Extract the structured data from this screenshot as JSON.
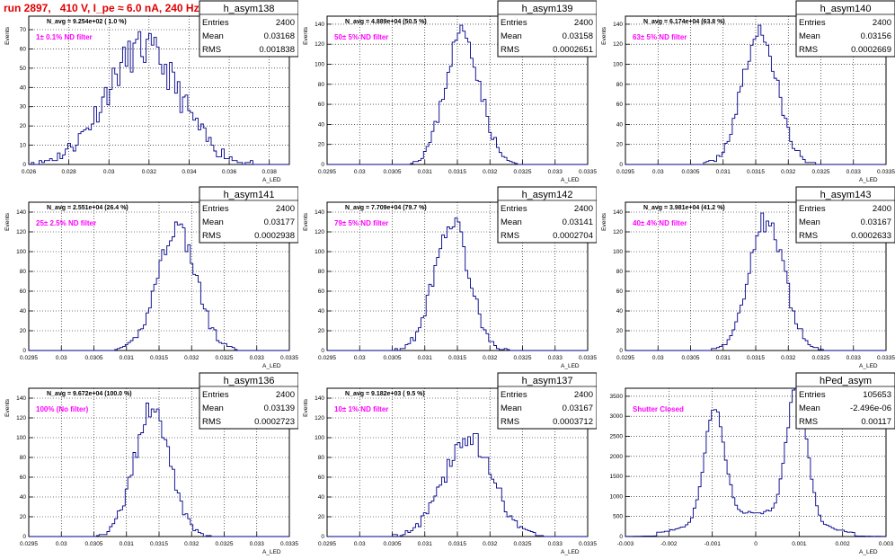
{
  "page_title": "run 2897,   410 V, I_pe ≈ 6.0 nA, 240 Hz",
  "chart_data": [
    {
      "type": "histogram",
      "hist_name": "h_asym138",
      "stats": {
        "entries": "2400",
        "mean": "0.03168",
        "rms": "0.001838"
      },
      "annotation": "N_avg = 9.254e+02 ( 1.0 %)",
      "label": "1± 0.1% ND filter",
      "ylabel": "Events",
      "xlabel": "A_LED",
      "xlim": [
        0.026,
        0.039
      ],
      "ylim": [
        0,
        77
      ],
      "xticks": [
        "0.026",
        "0.028",
        "0.03",
        "0.032",
        "0.034",
        "0.036",
        "0.038"
      ],
      "xtick_values": [
        0.026,
        0.028,
        0.03,
        0.032,
        0.034,
        0.036,
        0.038
      ],
      "yticks": [
        0,
        10,
        20,
        30,
        40,
        50,
        60,
        70
      ],
      "gen": {
        "kind": "gauss",
        "mu": 0.03168,
        "sigma": 0.001838,
        "peak": 60,
        "bins": 100,
        "noise": 10,
        "seed": 11
      }
    },
    {
      "type": "histogram",
      "hist_name": "h_asym139",
      "stats": {
        "entries": "2400",
        "mean": "0.03158",
        "rms": "0.0002651"
      },
      "annotation": "N_avg = 4.889e+04 (50.5 %)",
      "label": "50± 5% ND filter",
      "ylabel": "Events",
      "xlabel": "A_LED",
      "xlim": [
        0.0295,
        0.0335
      ],
      "ylim": [
        0,
        148
      ],
      "xticks": [
        "0.0295",
        "0.03",
        "0.0305",
        "0.031",
        "0.0315",
        "0.032",
        "0.0325",
        "0.033",
        "0.0335"
      ],
      "xtick_values": [
        0.0295,
        0.03,
        0.0305,
        0.031,
        0.0315,
        0.032,
        0.0325,
        0.033,
        0.0335
      ],
      "yticks": [
        0,
        20,
        40,
        60,
        80,
        100,
        120,
        140
      ],
      "gen": {
        "kind": "gauss",
        "mu": 0.03158,
        "sigma": 0.0002651,
        "peak": 132,
        "bins": 100,
        "noise": 12,
        "seed": 23
      }
    },
    {
      "type": "histogram",
      "hist_name": "h_asym140",
      "stats": {
        "entries": "2400",
        "mean": "0.03156",
        "rms": "0.0002669"
      },
      "annotation": "N_avg = 6.174e+04 (63.8 %)",
      "label": "63± 5% ND filter",
      "ylabel": "Events",
      "xlabel": "A_LED",
      "xlim": [
        0.0295,
        0.0335
      ],
      "ylim": [
        0,
        148
      ],
      "xticks": [
        "0.0295",
        "0.03",
        "0.0305",
        "0.031",
        "0.0315",
        "0.032",
        "0.0325",
        "0.033",
        "0.0335"
      ],
      "xtick_values": [
        0.0295,
        0.03,
        0.0305,
        0.031,
        0.0315,
        0.032,
        0.0325,
        0.033,
        0.0335
      ],
      "yticks": [
        0,
        20,
        40,
        60,
        80,
        100,
        120,
        140
      ],
      "gen": {
        "kind": "gauss",
        "mu": 0.03156,
        "sigma": 0.0002669,
        "peak": 132,
        "bins": 100,
        "noise": 12,
        "seed": 37
      }
    },
    {
      "type": "histogram",
      "hist_name": "h_asym141",
      "stats": {
        "entries": "2400",
        "mean": "0.03177",
        "rms": "0.0002938"
      },
      "annotation": "N_avg = 2.551e+04 (26.4 %)",
      "label": "25± 2.5% ND filter",
      "ylabel": "Events",
      "xlabel": "A_LED",
      "xlim": [
        0.0295,
        0.0335
      ],
      "ylim": [
        0,
        150
      ],
      "xticks": [
        "0.0295",
        "0.03",
        "0.0305",
        "0.031",
        "0.0315",
        "0.032",
        "0.0325",
        "0.033",
        "0.0335"
      ],
      "xtick_values": [
        0.0295,
        0.03,
        0.0305,
        0.031,
        0.0315,
        0.032,
        0.0325,
        0.033,
        0.0335
      ],
      "yticks": [
        0,
        20,
        40,
        60,
        80,
        100,
        120,
        140
      ],
      "gen": {
        "kind": "gauss",
        "mu": 0.03177,
        "sigma": 0.0002938,
        "peak": 125,
        "bins": 100,
        "noise": 12,
        "seed": 41
      }
    },
    {
      "type": "histogram",
      "hist_name": "h_asym142",
      "stats": {
        "entries": "2400",
        "mean": "0.03141",
        "rms": "0.0002704"
      },
      "annotation": "N_avg = 7.709e+04 (79.7 %)",
      "label": "79± 5% ND filter",
      "ylabel": "Events",
      "xlabel": "A_LED",
      "xlim": [
        0.0295,
        0.0335
      ],
      "ylim": [
        0,
        150
      ],
      "xticks": [
        "0.0295",
        "0.03",
        "0.0305",
        "0.031",
        "0.0315",
        "0.032",
        "0.0325",
        "0.033",
        "0.0335"
      ],
      "xtick_values": [
        0.0295,
        0.03,
        0.0305,
        0.031,
        0.0315,
        0.032,
        0.0325,
        0.033,
        0.0335
      ],
      "yticks": [
        0,
        20,
        40,
        60,
        80,
        100,
        120,
        140
      ],
      "gen": {
        "kind": "gauss",
        "mu": 0.03141,
        "sigma": 0.0002704,
        "peak": 130,
        "bins": 100,
        "noise": 12,
        "seed": 53
      }
    },
    {
      "type": "histogram",
      "hist_name": "h_asym143",
      "stats": {
        "entries": "2400",
        "mean": "0.03167",
        "rms": "0.0002633"
      },
      "annotation": "N_avg = 3.981e+04 (41.2 %)",
      "label": "40± 4% ND filter",
      "ylabel": "Events",
      "xlabel": "A_LED",
      "xlim": [
        0.0295,
        0.0335
      ],
      "ylim": [
        0,
        150
      ],
      "xticks": [
        "0.0295",
        "0.03",
        "0.0305",
        "0.031",
        "0.0315",
        "0.032",
        "0.0325",
        "0.033",
        "0.0335"
      ],
      "xtick_values": [
        0.0295,
        0.03,
        0.0305,
        0.031,
        0.0315,
        0.032,
        0.0325,
        0.033,
        0.0335
      ],
      "yticks": [
        0,
        20,
        40,
        60,
        80,
        100,
        120,
        140
      ],
      "gen": {
        "kind": "gauss",
        "mu": 0.03167,
        "sigma": 0.0002633,
        "peak": 132,
        "bins": 100,
        "noise": 12,
        "seed": 67
      }
    },
    {
      "type": "histogram",
      "hist_name": "h_asym136",
      "stats": {
        "entries": "2400",
        "mean": "0.03139",
        "rms": "0.0002723"
      },
      "annotation": "N_avg = 9.672e+04 (100.0 %)",
      "label": "100% (No filter)",
      "ylabel": "Events",
      "xlabel": "A_LED",
      "xlim": [
        0.0295,
        0.0335
      ],
      "ylim": [
        0,
        150
      ],
      "xticks": [
        "0.0295",
        "0.03",
        "0.0305",
        "0.031",
        "0.0315",
        "0.032",
        "0.0325",
        "0.033",
        "0.0335"
      ],
      "xtick_values": [
        0.0295,
        0.03,
        0.0305,
        0.031,
        0.0315,
        0.032,
        0.0325,
        0.033,
        0.0335
      ],
      "yticks": [
        0,
        20,
        40,
        60,
        80,
        100,
        120,
        140
      ],
      "gen": {
        "kind": "gauss",
        "mu": 0.03139,
        "sigma": 0.0002723,
        "peak": 128,
        "bins": 100,
        "noise": 12,
        "seed": 79
      }
    },
    {
      "type": "histogram",
      "hist_name": "h_asym137",
      "stats": {
        "entries": "2400",
        "mean": "0.03167",
        "rms": "0.0003712"
      },
      "annotation": "N_avg = 9.182e+03 ( 9.5 %)",
      "label": "10± 1% ND filter",
      "ylabel": "Events",
      "xlabel": "A_LED",
      "xlim": [
        0.0295,
        0.0335
      ],
      "ylim": [
        0,
        150
      ],
      "xticks": [
        "0.0295",
        "0.03",
        "0.0305",
        "0.031",
        "0.0315",
        "0.032",
        "0.0325",
        "0.033",
        "0.0335"
      ],
      "xtick_values": [
        0.0295,
        0.03,
        0.0305,
        0.031,
        0.0315,
        0.032,
        0.0325,
        0.033,
        0.0335
      ],
      "yticks": [
        0,
        20,
        40,
        60,
        80,
        100,
        120,
        140
      ],
      "gen": {
        "kind": "gauss",
        "mu": 0.03167,
        "sigma": 0.0003712,
        "peak": 100,
        "bins": 100,
        "noise": 12,
        "seed": 83
      }
    },
    {
      "type": "histogram",
      "hist_name": "hPed_asym",
      "stats": {
        "entries": "105653",
        "mean": "-2.496e-06",
        "rms": "0.00117"
      },
      "annotation": "",
      "label": "Shutter Closed",
      "ylabel": "",
      "xlabel": "A_LED",
      "xlim": [
        -0.003,
        0.003
      ],
      "ylim": [
        0,
        3700
      ],
      "xticks": [
        "-0.003",
        "-0.002",
        "-0.001",
        "0",
        "0.001",
        "0.002",
        "0.003"
      ],
      "xtick_values": [
        -0.003,
        -0.002,
        -0.001,
        0,
        0.001,
        0.002,
        0.003
      ],
      "yticks": [
        0,
        500,
        1000,
        1500,
        2000,
        2500,
        3000,
        3500
      ],
      "gen": {
        "kind": "ped",
        "bins": 100,
        "seed": 97
      }
    }
  ]
}
